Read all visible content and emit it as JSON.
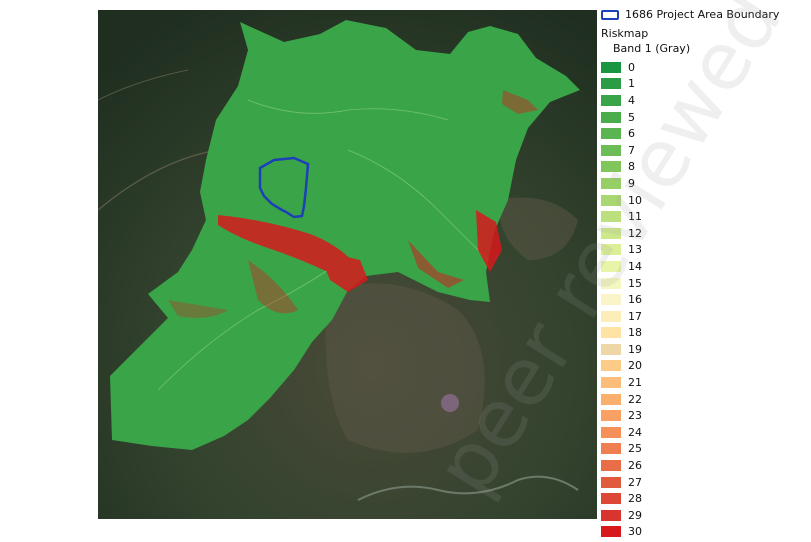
{
  "legend": {
    "boundary_label": "1686 Project Area Boundary",
    "layer_title": "Riskmap",
    "band_label": "Band 1 (Gray)",
    "items": [
      {
        "label": "0",
        "color": "#1a9641"
      },
      {
        "label": "1",
        "color": "#2a9d44"
      },
      {
        "label": "4",
        "color": "#3aa548"
      },
      {
        "label": "5",
        "color": "#4aad4c"
      },
      {
        "label": "6",
        "color": "#5ab551"
      },
      {
        "label": "7",
        "color": "#6cbd57"
      },
      {
        "label": "8",
        "color": "#80c65d"
      },
      {
        "label": "9",
        "color": "#96cf66"
      },
      {
        "label": "10",
        "color": "#aad772"
      },
      {
        "label": "11",
        "color": "#bde07e"
      },
      {
        "label": "12",
        "color": "#cde88b"
      },
      {
        "label": "13",
        "color": "#dbef98"
      },
      {
        "label": "14",
        "color": "#e8f5a8"
      },
      {
        "label": "15",
        "color": "#f5f7c0"
      },
      {
        "label": "16",
        "color": "#fbf4c8"
      },
      {
        "label": "17",
        "color": "#fdedb8"
      },
      {
        "label": "18",
        "color": "#fee3a4"
      },
      {
        "label": "19",
        "color": "#eed6a6"
      },
      {
        "label": "20",
        "color": "#fdcb88"
      },
      {
        "label": "21",
        "color": "#fcbd7a"
      },
      {
        "label": "22",
        "color": "#fbaf6d"
      },
      {
        "label": "23",
        "color": "#f9a062"
      },
      {
        "label": "24",
        "color": "#f59058"
      },
      {
        "label": "25",
        "color": "#ef7f50"
      },
      {
        "label": "26",
        "color": "#e96d47"
      },
      {
        "label": "27",
        "color": "#e25a3e"
      },
      {
        "label": "28",
        "color": "#dc4736"
      },
      {
        "label": "29",
        "color": "#d7352e"
      },
      {
        "label": "30",
        "color": "#d7191c"
      }
    ]
  },
  "watermark_text": "peer reviewed",
  "colors": {
    "boundary": "#1d3fb8",
    "low_risk": "#3aa548",
    "high_risk": "#d7191c",
    "imagery_dark": "#2a3a26"
  }
}
